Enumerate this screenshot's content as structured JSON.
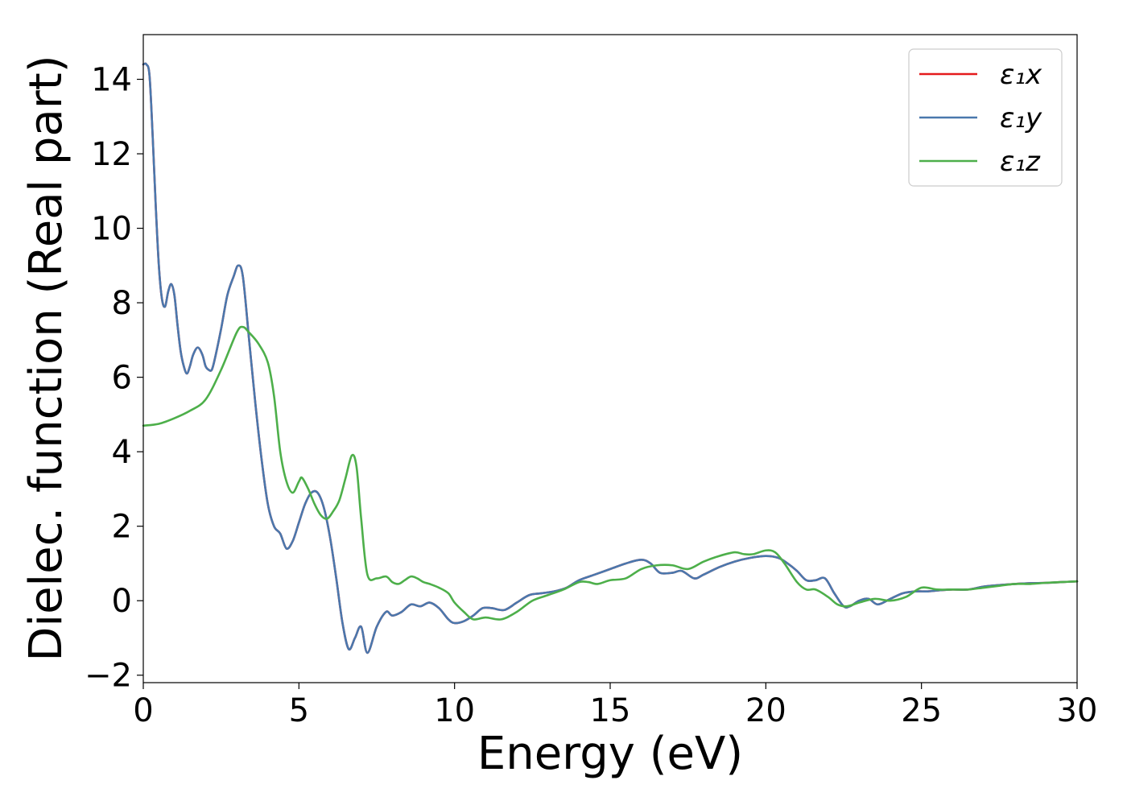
{
  "chart_data": {
    "type": "line",
    "title": "",
    "xlabel": "Energy (eV)",
    "ylabel": "Dielec. function (Real part)",
    "xlim": [
      0,
      30
    ],
    "ylim": [
      -2.2,
      15.2
    ],
    "xticks": [
      {
        "value": 0,
        "label": "0"
      },
      {
        "value": 5,
        "label": "5"
      },
      {
        "value": 10,
        "label": "10"
      },
      {
        "value": 15,
        "label": "15"
      },
      {
        "value": 20,
        "label": "20"
      },
      {
        "value": 25,
        "label": "25"
      },
      {
        "value": 30,
        "label": "30"
      }
    ],
    "yticks": [
      {
        "value": -2,
        "label": "−2"
      },
      {
        "value": 0,
        "label": "0"
      },
      {
        "value": 2,
        "label": "2"
      },
      {
        "value": 4,
        "label": "4"
      },
      {
        "value": 6,
        "label": "6"
      },
      {
        "value": 8,
        "label": "8"
      },
      {
        "value": 10,
        "label": "10"
      },
      {
        "value": 12,
        "label": "12"
      },
      {
        "value": 14,
        "label": "14"
      }
    ],
    "grid": false,
    "legend_position": "top-right",
    "series": [
      {
        "name": "ε₁x",
        "color": "#e41a1c",
        "x": [
          0,
          0.1,
          0.2,
          0.3,
          0.4,
          0.5,
          0.6,
          0.7,
          0.8,
          0.9,
          1.0,
          1.1,
          1.2,
          1.3,
          1.4,
          1.5,
          1.6,
          1.75,
          1.9,
          2.0,
          2.1,
          2.2,
          2.3,
          2.5,
          2.7,
          2.9,
          3.05,
          3.2,
          3.4,
          3.6,
          3.8,
          4.0,
          4.2,
          4.4,
          4.6,
          4.8,
          5.0,
          5.2,
          5.4,
          5.6,
          5.8,
          6.0,
          6.2,
          6.4,
          6.6,
          6.8,
          7.0,
          7.2,
          7.5,
          7.8,
          8.0,
          8.3,
          8.6,
          8.9,
          9.2,
          9.5,
          9.8,
          10.0,
          10.3,
          10.6,
          10.9,
          11.2,
          11.6,
          12.0,
          12.4,
          12.8,
          13.2,
          13.6,
          14.0,
          14.5,
          15.0,
          15.5,
          16.0,
          16.3,
          16.6,
          17.0,
          17.3,
          17.7,
          18.0,
          18.5,
          19.0,
          19.5,
          20.0,
          20.4,
          20.7,
          21.0,
          21.3,
          21.6,
          21.9,
          22.2,
          22.5,
          22.7,
          23.0,
          23.3,
          23.6,
          24.0,
          24.4,
          24.8,
          25.2,
          25.6,
          26.0,
          26.5,
          27.0,
          27.5,
          28.0,
          28.5,
          29.0,
          29.5,
          30.0
        ],
        "y": [
          14.4,
          14.4,
          14.1,
          12.5,
          10.6,
          9.0,
          8.1,
          7.9,
          8.3,
          8.5,
          8.2,
          7.4,
          6.7,
          6.3,
          6.1,
          6.3,
          6.6,
          6.8,
          6.6,
          6.3,
          6.2,
          6.2,
          6.5,
          7.3,
          8.2,
          8.7,
          9.0,
          8.7,
          7.0,
          5.3,
          3.8,
          2.6,
          2.0,
          1.8,
          1.4,
          1.6,
          2.1,
          2.6,
          2.9,
          2.9,
          2.5,
          1.7,
          0.6,
          -0.6,
          -1.3,
          -1.0,
          -0.7,
          -1.4,
          -0.7,
          -0.3,
          -0.4,
          -0.3,
          -0.1,
          -0.15,
          -0.05,
          -0.2,
          -0.5,
          -0.6,
          -0.55,
          -0.4,
          -0.2,
          -0.2,
          -0.25,
          -0.05,
          0.15,
          0.2,
          0.25,
          0.35,
          0.55,
          0.7,
          0.85,
          1.0,
          1.1,
          1.0,
          0.75,
          0.75,
          0.8,
          0.6,
          0.7,
          0.9,
          1.05,
          1.15,
          1.2,
          1.15,
          1.0,
          0.8,
          0.55,
          0.55,
          0.6,
          0.2,
          -0.15,
          -0.15,
          0.0,
          0.05,
          -0.1,
          0.05,
          0.2,
          0.25,
          0.25,
          0.28,
          0.3,
          0.3,
          0.38,
          0.42,
          0.45,
          0.47,
          0.48,
          0.5,
          0.52
        ]
      },
      {
        "name": "ε₁y",
        "color": "#4a78ad",
        "x": [
          0,
          0.1,
          0.2,
          0.3,
          0.4,
          0.5,
          0.6,
          0.7,
          0.8,
          0.9,
          1.0,
          1.1,
          1.2,
          1.3,
          1.4,
          1.5,
          1.6,
          1.75,
          1.9,
          2.0,
          2.1,
          2.2,
          2.3,
          2.5,
          2.7,
          2.9,
          3.05,
          3.2,
          3.4,
          3.6,
          3.8,
          4.0,
          4.2,
          4.4,
          4.6,
          4.8,
          5.0,
          5.2,
          5.4,
          5.6,
          5.8,
          6.0,
          6.2,
          6.4,
          6.6,
          6.8,
          7.0,
          7.2,
          7.5,
          7.8,
          8.0,
          8.3,
          8.6,
          8.9,
          9.2,
          9.5,
          9.8,
          10.0,
          10.3,
          10.6,
          10.9,
          11.2,
          11.6,
          12.0,
          12.4,
          12.8,
          13.2,
          13.6,
          14.0,
          14.5,
          15.0,
          15.5,
          16.0,
          16.3,
          16.6,
          17.0,
          17.3,
          17.7,
          18.0,
          18.5,
          19.0,
          19.5,
          20.0,
          20.4,
          20.7,
          21.0,
          21.3,
          21.6,
          21.9,
          22.2,
          22.5,
          22.7,
          23.0,
          23.3,
          23.6,
          24.0,
          24.4,
          24.8,
          25.2,
          25.6,
          26.0,
          26.5,
          27.0,
          27.5,
          28.0,
          28.5,
          29.0,
          29.5,
          30.0
        ],
        "y": [
          14.4,
          14.4,
          14.1,
          12.5,
          10.6,
          9.0,
          8.1,
          7.9,
          8.3,
          8.5,
          8.2,
          7.4,
          6.7,
          6.3,
          6.1,
          6.3,
          6.6,
          6.8,
          6.6,
          6.3,
          6.2,
          6.2,
          6.5,
          7.3,
          8.2,
          8.7,
          9.0,
          8.7,
          7.0,
          5.3,
          3.8,
          2.6,
          2.0,
          1.8,
          1.4,
          1.6,
          2.1,
          2.6,
          2.9,
          2.9,
          2.5,
          1.7,
          0.6,
          -0.6,
          -1.3,
          -1.0,
          -0.7,
          -1.4,
          -0.7,
          -0.3,
          -0.4,
          -0.3,
          -0.1,
          -0.15,
          -0.05,
          -0.2,
          -0.5,
          -0.6,
          -0.55,
          -0.4,
          -0.2,
          -0.2,
          -0.25,
          -0.05,
          0.15,
          0.2,
          0.25,
          0.35,
          0.55,
          0.7,
          0.85,
          1.0,
          1.1,
          1.0,
          0.75,
          0.75,
          0.8,
          0.6,
          0.7,
          0.9,
          1.05,
          1.15,
          1.2,
          1.15,
          1.0,
          0.8,
          0.55,
          0.55,
          0.6,
          0.2,
          -0.15,
          -0.15,
          0.0,
          0.05,
          -0.1,
          0.05,
          0.2,
          0.25,
          0.25,
          0.28,
          0.3,
          0.3,
          0.38,
          0.42,
          0.45,
          0.47,
          0.48,
          0.5,
          0.52
        ]
      },
      {
        "name": "ε₁z",
        "color": "#4daf4a",
        "x": [
          0,
          0.5,
          1.0,
          1.5,
          2.0,
          2.5,
          3.0,
          3.2,
          3.4,
          3.7,
          4.0,
          4.2,
          4.4,
          4.6,
          4.8,
          5.0,
          5.1,
          5.3,
          5.5,
          5.7,
          5.9,
          6.1,
          6.3,
          6.5,
          6.7,
          6.85,
          7.0,
          7.2,
          7.5,
          7.8,
          8.0,
          8.2,
          8.4,
          8.6,
          8.8,
          9.0,
          9.2,
          9.5,
          9.8,
          10.0,
          10.3,
          10.6,
          11.0,
          11.5,
          12.0,
          12.5,
          13.0,
          13.5,
          14.0,
          14.3,
          14.6,
          15.0,
          15.5,
          16.0,
          16.5,
          17.0,
          17.5,
          18.0,
          18.5,
          19.0,
          19.3,
          19.6,
          20.0,
          20.3,
          20.6,
          21.0,
          21.3,
          21.6,
          22.0,
          22.3,
          22.6,
          23.0,
          23.5,
          24.0,
          24.5,
          25.0,
          25.5,
          26.0,
          26.5,
          27.0,
          27.5,
          28.0,
          28.5,
          29.0,
          29.5,
          30.0
        ],
        "y": [
          4.7,
          4.75,
          4.9,
          5.1,
          5.4,
          6.2,
          7.2,
          7.35,
          7.2,
          6.9,
          6.4,
          5.5,
          4.0,
          3.2,
          2.9,
          3.2,
          3.3,
          3.0,
          2.6,
          2.3,
          2.2,
          2.4,
          2.7,
          3.3,
          3.9,
          3.6,
          2.2,
          0.7,
          0.6,
          0.65,
          0.5,
          0.45,
          0.55,
          0.65,
          0.6,
          0.5,
          0.45,
          0.35,
          0.2,
          -0.05,
          -0.3,
          -0.5,
          -0.45,
          -0.5,
          -0.3,
          0.0,
          0.15,
          0.3,
          0.5,
          0.5,
          0.45,
          0.55,
          0.6,
          0.85,
          0.95,
          0.95,
          0.85,
          1.05,
          1.2,
          1.3,
          1.25,
          1.25,
          1.35,
          1.3,
          1.0,
          0.5,
          0.3,
          0.3,
          0.1,
          -0.1,
          -0.15,
          -0.05,
          0.05,
          0.0,
          0.1,
          0.35,
          0.3,
          0.3,
          0.3,
          0.35,
          0.4,
          0.45,
          0.45,
          0.48,
          0.5,
          0.52
        ]
      }
    ]
  }
}
